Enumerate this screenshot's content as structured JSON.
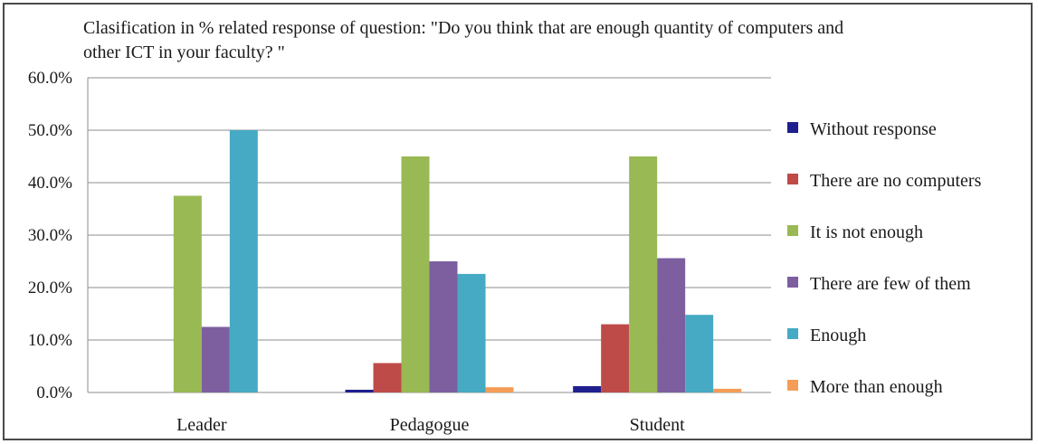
{
  "chart_data": {
    "type": "bar",
    "title": "Clasification in % related response of question: \"Do you think that are enough quantity of computers and other ICT in your faculty? \"",
    "categories": [
      "Leader",
      "Pedagogue",
      "Student"
    ],
    "ylim": [
      0,
      60
    ],
    "yticks": [
      "0.0%",
      "10.0%",
      "20.0%",
      "30.0%",
      "40.0%",
      "50.0%",
      "60.0%"
    ],
    "grid": "horizontal",
    "legend_position": "right",
    "series": [
      {
        "name": "Without response",
        "color": "#1f1f8f",
        "values": [
          0,
          0.4,
          1.2
        ]
      },
      {
        "name": "There are no computers",
        "color": "#be4b48",
        "values": [
          0,
          5.6,
          13.0
        ]
      },
      {
        "name": "It is not enough",
        "color": "#98b954",
        "values": [
          37.5,
          45.0,
          45.0
        ]
      },
      {
        "name": "There are few of them",
        "color": "#7d5fa0",
        "values": [
          12.5,
          25.0,
          25.6
        ]
      },
      {
        "name": "Enough",
        "color": "#46aac4",
        "values": [
          50.0,
          22.6,
          14.8
        ]
      },
      {
        "name": "More than enough",
        "color": "#f59d56",
        "values": [
          0,
          1.0,
          0.7
        ]
      }
    ]
  }
}
